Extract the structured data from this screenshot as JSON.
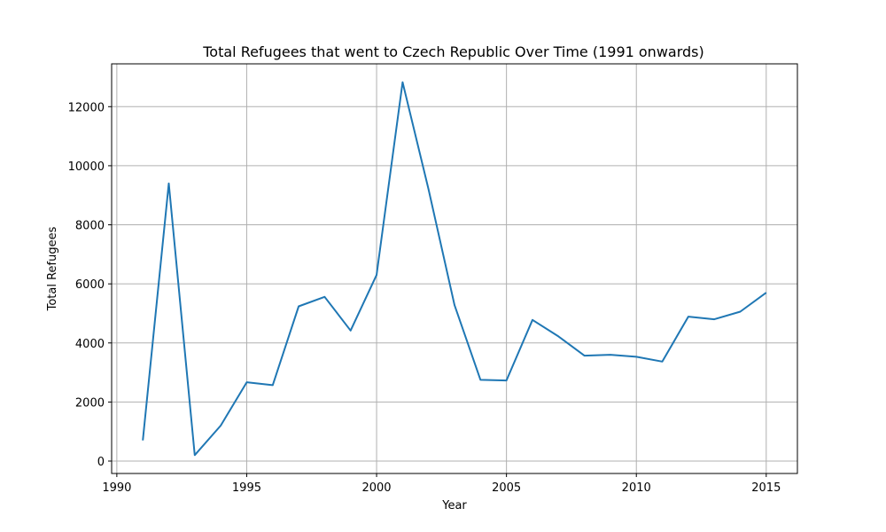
{
  "chart_data": {
    "type": "line",
    "title": "Total Refugees that went to  Czech Republic Over Time (1991 onwards)",
    "xlabel": "Year",
    "ylabel": "Total Refugees",
    "xlim": [
      1989.8,
      2016.2
    ],
    "ylim": [
      -420,
      13450
    ],
    "xticks": [
      1990,
      1995,
      2000,
      2005,
      2010,
      2015
    ],
    "yticks": [
      0,
      2000,
      4000,
      6000,
      8000,
      10000,
      12000
    ],
    "grid": true,
    "line_color": "#1f77b4",
    "series": [
      {
        "x": [
          1991,
          1992,
          1993,
          1994,
          1995,
          1996,
          1997,
          1998,
          1999,
          2000,
          2001,
          2002,
          2003,
          2004,
          2005,
          2006,
          2007,
          2008,
          2009,
          2010,
          2011,
          2012,
          2013,
          2014,
          2015
        ],
        "values": [
          700,
          9400,
          200,
          1200,
          2670,
          2570,
          5240,
          5560,
          4420,
          6300,
          12830,
          9200,
          5280,
          2750,
          2730,
          4780,
          4220,
          3570,
          3600,
          3530,
          3370,
          4890,
          4800,
          5060,
          5700
        ]
      }
    ]
  }
}
